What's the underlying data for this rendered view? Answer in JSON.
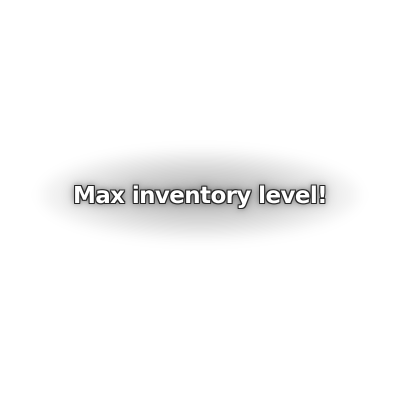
{
  "notification": {
    "message": "Max inventory level!"
  }
}
